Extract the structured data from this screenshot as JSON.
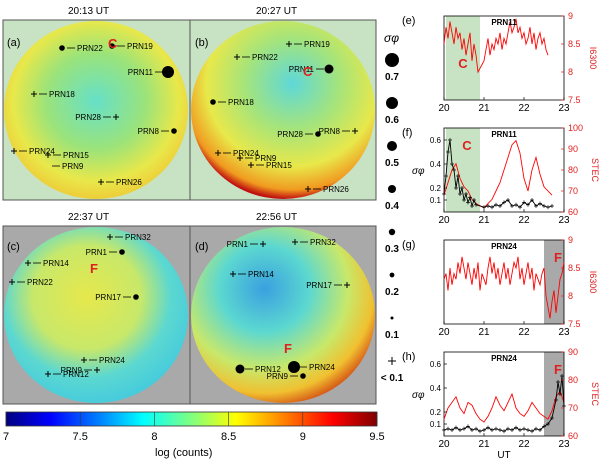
{
  "panels": [
    {
      "id": "a",
      "label": "(a)",
      "time": "20:13 UT",
      "bg": "#c7e3c3",
      "prns": [
        {
          "name": "PRN22",
          "size": "small",
          "tag": "",
          "dir": 1
        },
        {
          "name": "PRN19",
          "size": "small",
          "tag": "",
          "dir": 1
        },
        {
          "name": "PRN11",
          "size": "large",
          "tag": "",
          "dir": -1
        },
        {
          "name": "PRN18",
          "size": "cross",
          "tag": "",
          "dir": 1
        },
        {
          "name": "PRN28",
          "size": "cross",
          "tag": "",
          "dir": -1
        },
        {
          "name": "PRN8",
          "size": "small",
          "tag": "",
          "dir": -1
        },
        {
          "name": "PRN24",
          "size": "cross",
          "tag": "",
          "dir": 1
        },
        {
          "name": "PRN15",
          "size": "cross",
          "tag": "",
          "dir": 1
        },
        {
          "name": "PRN9",
          "size": "none",
          "tag": "",
          "dir": 1
        },
        {
          "name": "PRN26",
          "size": "cross",
          "tag": "",
          "dir": 1
        }
      ],
      "letter": "C"
    },
    {
      "id": "b",
      "label": "(b)",
      "time": "20:27 UT",
      "bg": "#c7e3c3",
      "prns": [
        {
          "name": "PRN19",
          "size": "cross",
          "tag": "",
          "dir": 1
        },
        {
          "name": "PRN22",
          "size": "cross",
          "tag": "",
          "dir": 1
        },
        {
          "name": "PRN11",
          "size": "medium",
          "tag": "",
          "dir": -1
        },
        {
          "name": "PRN18",
          "size": "small",
          "tag": "",
          "dir": 1
        },
        {
          "name": "PRN28",
          "size": "small",
          "tag": "",
          "dir": -1
        },
        {
          "name": "PRN8",
          "size": "cross",
          "tag": "",
          "dir": -1
        },
        {
          "name": "PRN24",
          "size": "cross",
          "tag": "",
          "dir": 1
        },
        {
          "name": "PRN9",
          "size": "cross",
          "tag": "",
          "dir": 1
        },
        {
          "name": "PRN15",
          "size": "cross",
          "tag": "",
          "dir": 1
        },
        {
          "name": "PRN26",
          "size": "cross",
          "tag": "",
          "dir": 1
        }
      ],
      "letter": "C"
    },
    {
      "id": "c",
      "label": "(c)",
      "time": "22:37 UT",
      "bg": "#a9a9a9",
      "prns": [
        {
          "name": "PRN32",
          "size": "cross",
          "tag": "",
          "dir": 1
        },
        {
          "name": "PRN1",
          "size": "small",
          "tag": "",
          "dir": -1
        },
        {
          "name": "PRN14",
          "size": "cross",
          "tag": "",
          "dir": 1
        },
        {
          "name": "PRN22",
          "size": "cross",
          "tag": "",
          "dir": 1
        },
        {
          "name": "PRN17",
          "size": "small",
          "tag": "",
          "dir": -1
        },
        {
          "name": "PRN24",
          "size": "cross",
          "tag": "",
          "dir": 1
        },
        {
          "name": "PRN9",
          "size": "cross",
          "tag": "",
          "dir": -1
        },
        {
          "name": "PRN12",
          "size": "cross",
          "tag": "",
          "dir": 1
        }
      ],
      "letter": "F"
    },
    {
      "id": "d",
      "label": "(d)",
      "time": "22:56 UT",
      "bg": "#a9a9a9",
      "prns": [
        {
          "name": "PRN1",
          "size": "cross",
          "tag": "",
          "dir": -1
        },
        {
          "name": "PRN32",
          "size": "cross",
          "tag": "",
          "dir": 1
        },
        {
          "name": "PRN14",
          "size": "cross",
          "tag": "",
          "dir": 1
        },
        {
          "name": "PRN17",
          "size": "cross",
          "tag": "",
          "dir": -1
        },
        {
          "name": "PRN12",
          "size": "medium",
          "tag": "",
          "dir": 1
        },
        {
          "name": "PRN24",
          "size": "large",
          "tag": "",
          "dir": 1
        },
        {
          "name": "PRN9",
          "size": "small",
          "tag": "",
          "dir": -1
        }
      ],
      "letter": "F"
    }
  ],
  "sigma_legend": {
    "title": "σφ",
    "levels": [
      {
        "label": "0.7",
        "r": 7
      },
      {
        "label": "0.6",
        "r": 6
      },
      {
        "label": "0.5",
        "r": 5
      },
      {
        "label": "0.4",
        "r": 4
      },
      {
        "label": "0.3",
        "r": 3.2
      },
      {
        "label": "0.2",
        "r": 2.4
      },
      {
        "label": "0.1",
        "r": 1.5
      },
      {
        "label": "< 0.1",
        "r": 0
      }
    ]
  },
  "colorbar": {
    "label": "log (counts)",
    "ticks": [
      "7",
      "7.5",
      "8",
      "8.5",
      "9",
      "9.5"
    ],
    "range": [
      7,
      9.5
    ],
    "colors": [
      "#00007f",
      "#0000ff",
      "#0080ff",
      "#00ffff",
      "#80ff80",
      "#ffff00",
      "#ff8000",
      "#ff0000",
      "#7f0000"
    ]
  },
  "chart_data": [
    {
      "type": "line",
      "id": "e",
      "label": "(e)",
      "title": "PRN11",
      "ylabel": "I6300",
      "ylim": [
        7.5,
        9
      ],
      "yticks": [
        "7.5",
        "8",
        "8.5",
        "9"
      ],
      "xlim": [
        20,
        23
      ],
      "xticks": [
        "20",
        "21",
        "22",
        "23"
      ],
      "shade": {
        "x0": 20.05,
        "x1": 20.9,
        "color": "#c7e3c3",
        "letter": "C"
      },
      "series": [
        {
          "name": "I6300",
          "color": "#ff0000",
          "x": [
            20.0,
            20.05,
            20.1,
            20.15,
            20.2,
            20.25,
            20.3,
            20.35,
            20.4,
            20.45,
            20.5,
            20.55,
            20.6,
            20.65,
            20.7,
            20.75,
            20.8,
            20.85,
            21.0,
            21.05,
            21.1,
            21.15,
            21.2,
            21.25,
            21.3,
            21.35,
            21.4,
            21.45,
            21.5,
            21.55,
            21.6,
            21.65,
            21.7,
            21.75,
            21.8,
            21.85,
            21.9,
            21.95,
            22.0,
            22.05,
            22.1,
            22.15,
            22.2,
            22.25,
            22.3,
            22.35,
            22.4,
            22.45,
            22.5,
            22.55,
            22.6
          ],
          "y": [
            8.5,
            8.8,
            8.6,
            8.9,
            8.7,
            8.5,
            8.8,
            8.6,
            8.7,
            8.4,
            8.6,
            8.3,
            8.5,
            8.7,
            8.2,
            8.5,
            8.3,
            8.0,
            8.2,
            8.4,
            8.6,
            8.3,
            8.5,
            8.4,
            8.6,
            8.5,
            8.7,
            8.4,
            8.6,
            8.5,
            8.7,
            8.9,
            8.7,
            8.8,
            8.95,
            8.7,
            8.8,
            8.6,
            8.7,
            8.5,
            8.6,
            8.8,
            8.5,
            8.7,
            8.4,
            8.6,
            8.7,
            8.5,
            8.6,
            8.4,
            8.3
          ]
        }
      ]
    },
    {
      "type": "line",
      "id": "f",
      "label": "(f)",
      "title": "PRN11",
      "ylabel": "σφ",
      "y2label": "STEC",
      "ylim": [
        0,
        0.7
      ],
      "yticks": [
        "0.1",
        "0.2",
        "0.4",
        "0.6"
      ],
      "y2lim": [
        60,
        100
      ],
      "y2ticks": [
        "60",
        "70",
        "80",
        "90",
        "100"
      ],
      "xlim": [
        20,
        23
      ],
      "xticks": [
        "20",
        "21",
        "22",
        "23"
      ],
      "shade": {
        "x0": 20.05,
        "x1": 20.9,
        "color": "#c7e3c3",
        "letter": "C"
      },
      "series": [
        {
          "name": "STEC",
          "color": "#ff0000",
          "axis": "right",
          "x": [
            20.0,
            20.1,
            20.2,
            20.3,
            20.4,
            20.5,
            20.6,
            20.7,
            20.8,
            21.0,
            21.1,
            21.2,
            21.3,
            21.4,
            21.5,
            21.6,
            21.7,
            21.8,
            21.9,
            22.0,
            22.1,
            22.2,
            22.3,
            22.4,
            22.5,
            22.6,
            22.7
          ],
          "y": [
            68,
            74,
            80,
            83,
            76,
            72,
            70,
            66,
            64,
            62,
            64,
            66,
            70,
            74,
            80,
            86,
            92,
            94,
            88,
            76,
            70,
            80,
            86,
            78,
            72,
            70,
            68
          ]
        },
        {
          "name": "σφ",
          "color": "#000000",
          "axis": "left",
          "markers": true,
          "x": [
            20.0,
            20.05,
            20.1,
            20.15,
            20.2,
            20.25,
            20.3,
            20.35,
            20.4,
            20.45,
            20.5,
            20.55,
            20.6,
            20.65,
            20.7,
            20.75,
            20.8,
            21.0,
            21.1,
            21.2,
            21.3,
            21.4,
            21.5,
            21.6,
            21.7,
            21.8,
            21.9,
            22.0,
            22.1,
            22.2,
            22.3,
            22.4,
            22.5,
            22.6,
            22.7
          ],
          "y": [
            0.15,
            0.3,
            0.5,
            0.6,
            0.4,
            0.35,
            0.2,
            0.3,
            0.15,
            0.2,
            0.1,
            0.15,
            0.08,
            0.12,
            0.05,
            0.1,
            0.06,
            0.04,
            0.05,
            0.04,
            0.06,
            0.05,
            0.08,
            0.1,
            0.05,
            0.06,
            0.04,
            0.08,
            0.06,
            0.1,
            0.05,
            0.07,
            0.05,
            0.04,
            0.05
          ]
        }
      ]
    },
    {
      "type": "line",
      "id": "g",
      "label": "(g)",
      "title": "PRN24",
      "ylabel": "I6300",
      "ylim": [
        7.5,
        9
      ],
      "yticks": [
        "7.5",
        "8",
        "8.5",
        "9"
      ],
      "xlim": [
        20,
        23
      ],
      "xticks": [
        "20",
        "21",
        "22",
        "23"
      ],
      "shade": {
        "x0": 22.5,
        "x1": 23.0,
        "color": "#a9a9a9",
        "letter": "F"
      },
      "series": [
        {
          "name": "I6300",
          "color": "#ff0000",
          "x": [
            20.0,
            20.05,
            20.1,
            20.15,
            20.2,
            20.25,
            20.3,
            20.35,
            20.4,
            20.45,
            20.5,
            20.55,
            20.6,
            20.65,
            20.7,
            20.75,
            20.8,
            20.85,
            20.9,
            20.95,
            21.0,
            21.05,
            21.1,
            21.15,
            21.2,
            21.25,
            21.3,
            21.35,
            21.4,
            21.45,
            21.5,
            21.55,
            21.6,
            21.65,
            21.7,
            21.75,
            21.8,
            21.85,
            21.9,
            21.95,
            22.0,
            22.05,
            22.1,
            22.15,
            22.2,
            22.25,
            22.3,
            22.35,
            22.4,
            22.45,
            22.5,
            22.55,
            22.6,
            22.65,
            22.7,
            22.75,
            22.8,
            22.85,
            22.9,
            22.95,
            23.0
          ],
          "y": [
            8.3,
            8.4,
            8.1,
            8.5,
            8.2,
            8.4,
            8.3,
            8.6,
            8.4,
            8.7,
            8.5,
            8.3,
            8.6,
            8.4,
            8.2,
            8.5,
            8.3,
            8.6,
            8.1,
            8.4,
            8.3,
            8.2,
            8.5,
            8.7,
            8.4,
            8.6,
            8.3,
            8.5,
            8.2,
            8.4,
            8.6,
            8.3,
            8.5,
            8.2,
            8.4,
            8.6,
            8.5,
            8.7,
            8.3,
            8.5,
            8.2,
            8.4,
            8.6,
            8.3,
            8.5,
            8.1,
            8.4,
            8.3,
            8.2,
            8.4,
            8.5,
            8.0,
            7.8,
            7.6,
            7.9,
            8.1,
            7.7,
            8.0,
            8.3,
            8.4,
            8.6
          ]
        }
      ]
    },
    {
      "type": "line",
      "id": "h",
      "label": "(h)",
      "title": "PRN24",
      "ylabel": "σφ",
      "y2label": "STEC",
      "ylim": [
        0,
        0.7
      ],
      "yticks": [
        "0.1",
        "0.2",
        "0.4",
        "0.6"
      ],
      "y2lim": [
        60,
        90
      ],
      "y2ticks": [
        "60",
        "70",
        "80",
        "90"
      ],
      "xlim": [
        20,
        23
      ],
      "xticks": [
        "20",
        "21",
        "22",
        "23"
      ],
      "xlabel": "UT",
      "shade": {
        "x0": 22.5,
        "x1": 23.0,
        "color": "#a9a9a9",
        "letter": "F"
      },
      "series": [
        {
          "name": "STEC",
          "color": "#ff0000",
          "axis": "right",
          "x": [
            20.0,
            20.1,
            20.2,
            20.3,
            20.4,
            20.5,
            20.6,
            20.7,
            20.8,
            20.9,
            21.0,
            21.1,
            21.2,
            21.3,
            21.4,
            21.5,
            21.6,
            21.7,
            21.8,
            21.9,
            22.0,
            22.1,
            22.2,
            22.3,
            22.4,
            22.5,
            22.6,
            22.7,
            22.8,
            22.9,
            23.0
          ],
          "y": [
            66,
            70,
            72,
            74,
            70,
            68,
            72,
            71,
            68,
            66,
            65,
            67,
            70,
            74,
            71,
            69,
            72,
            75,
            70,
            68,
            67,
            69,
            72,
            70,
            68,
            67,
            66,
            69,
            74,
            76,
            72
          ]
        },
        {
          "name": "σφ",
          "color": "#000000",
          "axis": "left",
          "markers": true,
          "x": [
            20.0,
            20.1,
            20.2,
            20.3,
            20.4,
            20.5,
            20.6,
            20.7,
            20.8,
            20.9,
            21.0,
            21.1,
            21.2,
            21.3,
            21.4,
            21.5,
            21.6,
            21.7,
            21.8,
            21.9,
            22.0,
            22.1,
            22.2,
            22.3,
            22.4,
            22.5,
            22.6,
            22.7,
            22.8,
            22.85,
            22.9,
            22.95,
            23.0
          ],
          "y": [
            0.05,
            0.06,
            0.05,
            0.07,
            0.05,
            0.06,
            0.08,
            0.05,
            0.06,
            0.04,
            0.05,
            0.07,
            0.05,
            0.06,
            0.05,
            0.04,
            0.06,
            0.05,
            0.07,
            0.05,
            0.06,
            0.05,
            0.04,
            0.06,
            0.05,
            0.08,
            0.1,
            0.15,
            0.3,
            0.45,
            0.35,
            0.5,
            0.25
          ]
        }
      ]
    }
  ],
  "xlabel": "UT"
}
